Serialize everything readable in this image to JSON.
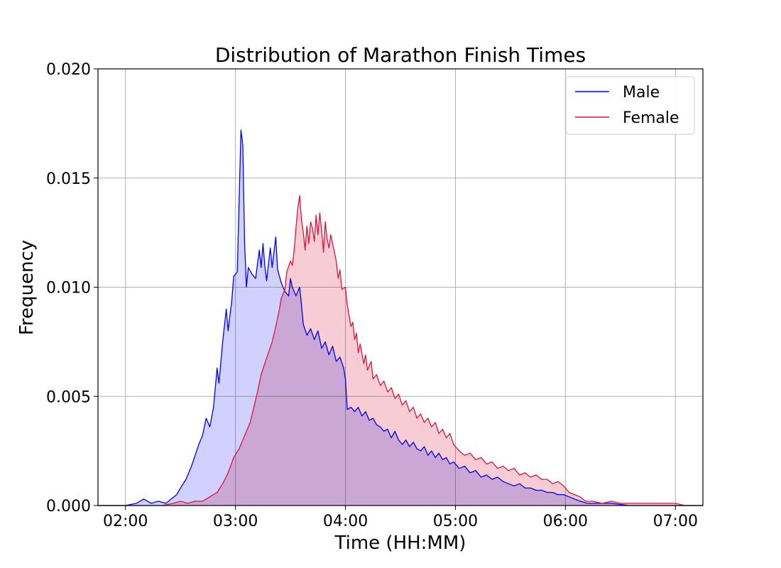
{
  "chart_data": {
    "type": "area",
    "title": "Distribution of Marathon Finish Times",
    "xlabel": "Time (HH:MM)",
    "ylabel": "Frequency",
    "x_unit": "HH:MM",
    "xlim": [
      "01:45",
      "07:15"
    ],
    "ylim": [
      0,
      0.02
    ],
    "x_ticks": [
      "02:00",
      "03:00",
      "04:00",
      "05:00",
      "06:00",
      "07:00"
    ],
    "y_ticks": [
      "0.000",
      "0.005",
      "0.010",
      "0.015",
      "0.020"
    ],
    "grid": true,
    "legend_position": "top-right",
    "series": [
      {
        "name": "Male",
        "color": "#0000ee",
        "fill": "#ccccff",
        "points": [
          [
            "01:45",
            0.0
          ],
          [
            "02:00",
            0.0
          ],
          [
            "02:06",
            0.0001
          ],
          [
            "02:10",
            0.0003
          ],
          [
            "02:14",
            0.0001
          ],
          [
            "02:18",
            0.0002
          ],
          [
            "02:22",
            0.0001
          ],
          [
            "02:25",
            0.0003
          ],
          [
            "02:28",
            0.0005
          ],
          [
            "02:30",
            0.0008
          ],
          [
            "02:33",
            0.0012
          ],
          [
            "02:36",
            0.0018
          ],
          [
            "02:38",
            0.0023
          ],
          [
            "02:40",
            0.0028
          ],
          [
            "02:42",
            0.0032
          ],
          [
            "02:44",
            0.004
          ],
          [
            "02:46",
            0.0036
          ],
          [
            "02:48",
            0.0045
          ],
          [
            "02:50",
            0.0063
          ],
          [
            "02:51",
            0.0056
          ],
          [
            "02:53",
            0.0075
          ],
          [
            "02:55",
            0.009
          ],
          [
            "02:56",
            0.008
          ],
          [
            "02:58",
            0.0094
          ],
          [
            "02:59",
            0.0105
          ],
          [
            "03:01",
            0.0107
          ],
          [
            "03:02",
            0.014
          ],
          [
            "03:03",
            0.0172
          ],
          [
            "03:04",
            0.0165
          ],
          [
            "03:05",
            0.012
          ],
          [
            "03:06",
            0.01
          ],
          [
            "03:07",
            0.0109
          ],
          [
            "03:09",
            0.0106
          ],
          [
            "03:11",
            0.0104
          ],
          [
            "03:13",
            0.0117
          ],
          [
            "03:14",
            0.0109
          ],
          [
            "03:15",
            0.012
          ],
          [
            "03:16",
            0.011
          ],
          [
            "03:17",
            0.0103
          ],
          [
            "03:19",
            0.0118
          ],
          [
            "03:20",
            0.0109
          ],
          [
            "03:22",
            0.0123
          ],
          [
            "03:23",
            0.0108
          ],
          [
            "03:25",
            0.0102
          ],
          [
            "03:27",
            0.0098
          ],
          [
            "03:29",
            0.0096
          ],
          [
            "03:30",
            0.0104
          ],
          [
            "03:31",
            0.01
          ],
          [
            "03:33",
            0.0096
          ],
          [
            "03:35",
            0.01
          ],
          [
            "03:36",
            0.0092
          ],
          [
            "03:37",
            0.0083
          ],
          [
            "03:39",
            0.0078
          ],
          [
            "03:41",
            0.0081
          ],
          [
            "03:43",
            0.0076
          ],
          [
            "03:45",
            0.008
          ],
          [
            "03:47",
            0.0072
          ],
          [
            "03:49",
            0.0075
          ],
          [
            "03:51",
            0.0069
          ],
          [
            "03:53",
            0.0073
          ],
          [
            "03:55",
            0.0066
          ],
          [
            "03:57",
            0.0068
          ],
          [
            "03:59",
            0.0063
          ],
          [
            "04:00",
            0.0058
          ],
          [
            "04:01",
            0.0044
          ],
          [
            "04:03",
            0.0045
          ],
          [
            "04:05",
            0.0043
          ],
          [
            "04:07",
            0.0045
          ],
          [
            "04:09",
            0.0041
          ],
          [
            "04:11",
            0.0043
          ],
          [
            "04:13",
            0.0039
          ],
          [
            "04:15",
            0.004
          ],
          [
            "04:17",
            0.0037
          ],
          [
            "04:19",
            0.0036
          ],
          [
            "04:21",
            0.0034
          ],
          [
            "04:23",
            0.0035
          ],
          [
            "04:25",
            0.0031
          ],
          [
            "04:27",
            0.0034
          ],
          [
            "04:29",
            0.003
          ],
          [
            "04:31",
            0.0028
          ],
          [
            "04:33",
            0.003
          ],
          [
            "04:35",
            0.0027
          ],
          [
            "04:37",
            0.0029
          ],
          [
            "04:39",
            0.0026
          ],
          [
            "04:41",
            0.0025
          ],
          [
            "04:43",
            0.0027
          ],
          [
            "04:45",
            0.0023
          ],
          [
            "04:47",
            0.0025
          ],
          [
            "04:49",
            0.0022
          ],
          [
            "04:51",
            0.0024
          ],
          [
            "04:53",
            0.0021
          ],
          [
            "04:55",
            0.0022
          ],
          [
            "04:57",
            0.0019
          ],
          [
            "04:59",
            0.002
          ],
          [
            "05:02",
            0.0017
          ],
          [
            "05:05",
            0.0018
          ],
          [
            "05:08",
            0.0015
          ],
          [
            "05:11",
            0.0016
          ],
          [
            "05:14",
            0.0013
          ],
          [
            "05:17",
            0.0014
          ],
          [
            "05:20",
            0.0012
          ],
          [
            "05:23",
            0.0013
          ],
          [
            "05:26",
            0.0011
          ],
          [
            "05:29",
            0.001
          ],
          [
            "05:32",
            0.0009
          ],
          [
            "05:35",
            0.001
          ],
          [
            "05:38",
            0.0008
          ],
          [
            "05:41",
            0.0008
          ],
          [
            "05:44",
            0.0007
          ],
          [
            "05:47",
            0.0007
          ],
          [
            "05:50",
            0.0006
          ],
          [
            "05:53",
            0.0006
          ],
          [
            "05:56",
            0.0005
          ],
          [
            "05:59",
            0.0005
          ],
          [
            "06:02",
            0.0004
          ],
          [
            "06:05",
            0.0003
          ],
          [
            "06:08",
            0.0002
          ],
          [
            "06:12",
            0.0001
          ],
          [
            "06:18",
            0.0001
          ],
          [
            "06:25",
            0.0001
          ],
          [
            "06:35",
            0.0
          ],
          [
            "06:45",
            0.0
          ],
          [
            "07:00",
            0.0
          ],
          [
            "07:15",
            0.0
          ]
        ]
      },
      {
        "name": "Female",
        "color": "#dc143c",
        "fill": "#f6c6d0",
        "points": [
          [
            "01:45",
            0.0
          ],
          [
            "02:20",
            0.0
          ],
          [
            "02:26",
            0.0001
          ],
          [
            "02:30",
            0.0002
          ],
          [
            "02:34",
            0.0001
          ],
          [
            "02:38",
            0.0002
          ],
          [
            "02:42",
            0.0002
          ],
          [
            "02:46",
            0.0004
          ],
          [
            "02:50",
            0.0006
          ],
          [
            "02:53",
            0.001
          ],
          [
            "02:56",
            0.0015
          ],
          [
            "02:59",
            0.0022
          ],
          [
            "03:02",
            0.0026
          ],
          [
            "03:05",
            0.0032
          ],
          [
            "03:08",
            0.0038
          ],
          [
            "03:10",
            0.0045
          ],
          [
            "03:12",
            0.0052
          ],
          [
            "03:14",
            0.006
          ],
          [
            "03:16",
            0.0065
          ],
          [
            "03:18",
            0.007
          ],
          [
            "03:20",
            0.0075
          ],
          [
            "03:22",
            0.0082
          ],
          [
            "03:24",
            0.009
          ],
          [
            "03:25",
            0.0095
          ],
          [
            "03:27",
            0.0099
          ],
          [
            "03:28",
            0.0107
          ],
          [
            "03:30",
            0.0112
          ],
          [
            "03:31",
            0.011
          ],
          [
            "03:32",
            0.0117
          ],
          [
            "03:33",
            0.0127
          ],
          [
            "03:34",
            0.0136
          ],
          [
            "03:35",
            0.0142
          ],
          [
            "03:36",
            0.0131
          ],
          [
            "03:37",
            0.0125
          ],
          [
            "03:38",
            0.0117
          ],
          [
            "03:39",
            0.0128
          ],
          [
            "03:40",
            0.012
          ],
          [
            "03:41",
            0.013
          ],
          [
            "03:42",
            0.0127
          ],
          [
            "03:43",
            0.0121
          ],
          [
            "03:44",
            0.0133
          ],
          [
            "03:45",
            0.0124
          ],
          [
            "03:46",
            0.0134
          ],
          [
            "03:47",
            0.0126
          ],
          [
            "03:48",
            0.0116
          ],
          [
            "03:49",
            0.013
          ],
          [
            "03:50",
            0.0122
          ],
          [
            "03:51",
            0.0118
          ],
          [
            "03:52",
            0.0124
          ],
          [
            "03:53",
            0.012
          ],
          [
            "03:55",
            0.0112
          ],
          [
            "03:56",
            0.0104
          ],
          [
            "03:57",
            0.0108
          ],
          [
            "03:58",
            0.0099
          ],
          [
            "04:00",
            0.01
          ],
          [
            "04:01",
            0.0092
          ],
          [
            "04:02",
            0.0087
          ],
          [
            "04:03",
            0.0082
          ],
          [
            "04:04",
            0.0084
          ],
          [
            "04:05",
            0.0076
          ],
          [
            "04:06",
            0.0079
          ],
          [
            "04:07",
            0.007
          ],
          [
            "04:08",
            0.0074
          ],
          [
            "04:10",
            0.0065
          ],
          [
            "04:11",
            0.0069
          ],
          [
            "04:12",
            0.0062
          ],
          [
            "04:14",
            0.0066
          ],
          [
            "04:15",
            0.0058
          ],
          [
            "04:17",
            0.006
          ],
          [
            "04:19",
            0.0055
          ],
          [
            "04:21",
            0.0057
          ],
          [
            "04:23",
            0.0052
          ],
          [
            "04:25",
            0.0054
          ],
          [
            "04:27",
            0.0049
          ],
          [
            "04:29",
            0.0051
          ],
          [
            "04:31",
            0.0046
          ],
          [
            "04:33",
            0.0048
          ],
          [
            "04:35",
            0.0043
          ],
          [
            "04:37",
            0.0045
          ],
          [
            "04:39",
            0.004
          ],
          [
            "04:41",
            0.0042
          ],
          [
            "04:43",
            0.0038
          ],
          [
            "04:45",
            0.004
          ],
          [
            "04:47",
            0.0036
          ],
          [
            "04:49",
            0.0038
          ],
          [
            "04:51",
            0.0033
          ],
          [
            "04:53",
            0.0035
          ],
          [
            "04:55",
            0.0031
          ],
          [
            "04:57",
            0.0033
          ],
          [
            "04:59",
            0.0028
          ],
          [
            "05:02",
            0.0025
          ],
          [
            "05:05",
            0.0023
          ],
          [
            "05:08",
            0.0024
          ],
          [
            "05:11",
            0.0021
          ],
          [
            "05:14",
            0.0022
          ],
          [
            "05:17",
            0.0019
          ],
          [
            "05:20",
            0.002
          ],
          [
            "05:23",
            0.0017
          ],
          [
            "05:26",
            0.0018
          ],
          [
            "05:29",
            0.0016
          ],
          [
            "05:32",
            0.0017
          ],
          [
            "05:35",
            0.0014
          ],
          [
            "05:38",
            0.0015
          ],
          [
            "05:41",
            0.0013
          ],
          [
            "05:44",
            0.0014
          ],
          [
            "05:47",
            0.0012
          ],
          [
            "05:50",
            0.0012
          ],
          [
            "05:53",
            0.001
          ],
          [
            "05:56",
            0.0011
          ],
          [
            "05:59",
            0.0009
          ],
          [
            "06:02",
            0.0006
          ],
          [
            "06:05",
            0.0005
          ],
          [
            "06:08",
            0.0004
          ],
          [
            "06:11",
            0.0002
          ],
          [
            "06:15",
            0.0002
          ],
          [
            "06:20",
            0.0001
          ],
          [
            "06:25",
            0.0002
          ],
          [
            "06:30",
            0.0001
          ],
          [
            "06:40",
            0.0001
          ],
          [
            "06:50",
            0.0001
          ],
          [
            "07:00",
            0.0001
          ],
          [
            "07:05",
            0.0
          ],
          [
            "07:15",
            0.0
          ]
        ]
      }
    ]
  }
}
